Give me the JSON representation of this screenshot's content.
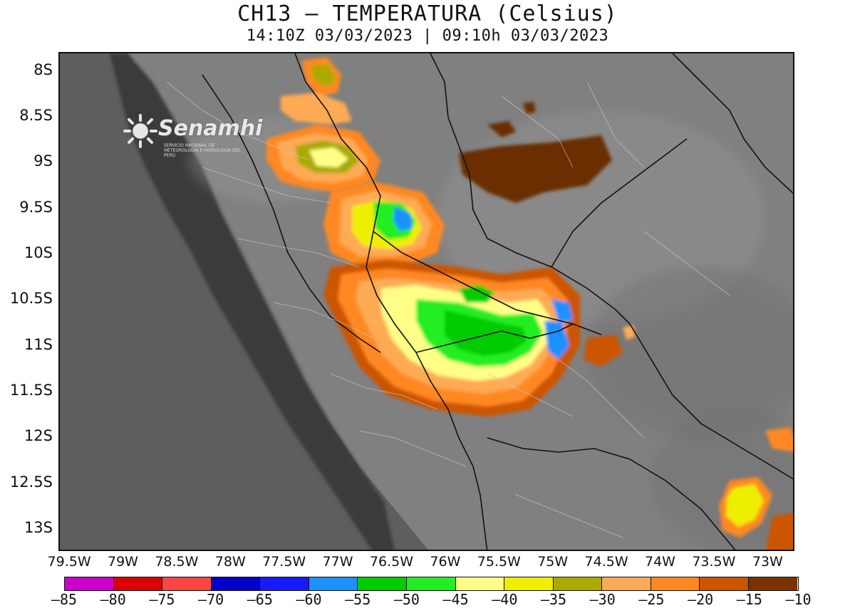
{
  "header": {
    "title": "CH13 – TEMPERATURA (Celsius)",
    "subtitle": "14:10Z 03/03/2023 | 09:10h 03/03/2023"
  },
  "logo": {
    "brand": "Senamhi",
    "tagline": "SERVICIO NACIONAL DE METEOROLOGÍA E HIDROLOGÍA DEL PERÚ"
  },
  "map": {
    "lat_range": [
      -13.25,
      -7.8
    ],
    "lon_range": [
      -79.6,
      -72.75
    ],
    "lat_labels": [
      "8S",
      "8.5S",
      "9S",
      "9.5S",
      "10S",
      "10.5S",
      "11S",
      "11.5S",
      "12S",
      "12.5S",
      "13S"
    ],
    "lat_values": [
      -8,
      -8.5,
      -9,
      -9.5,
      -10,
      -10.5,
      -11,
      -11.5,
      -12,
      -12.5,
      -13
    ],
    "lon_labels": [
      "79.5W",
      "79W",
      "78.5W",
      "78W",
      "77.5W",
      "77W",
      "76.5W",
      "76W",
      "75.5W",
      "75W",
      "74.5W",
      "74W",
      "73.5W",
      "73W"
    ],
    "lon_values": [
      -79.5,
      -79,
      -78.5,
      -78,
      -77.5,
      -77,
      -76.5,
      -76,
      -75.5,
      -75,
      -74.5,
      -74,
      -73.5,
      -73
    ],
    "background_colors": {
      "ocean": "#5c5c5c",
      "coast": "#2e2e2e",
      "highland": "#8a8a8a",
      "lowland": "#7a7a7a"
    }
  },
  "colorbar": {
    "labels": [
      "–85",
      "–80",
      "–75",
      "–70",
      "–65",
      "–60",
      "–55",
      "–50",
      "–45",
      "–40",
      "–35",
      "–30",
      "–25",
      "–20",
      "–15",
      "–10"
    ],
    "colors": [
      "#cc00cc",
      "#dd0000",
      "#ff4444",
      "#0000cc",
      "#1a1aff",
      "#1e90ff",
      "#00cc00",
      "#22ee22",
      "#ffff88",
      "#eeee00",
      "#aaaa00",
      "#ffaa55",
      "#ff8822",
      "#cc5500",
      "#7a3300"
    ]
  }
}
